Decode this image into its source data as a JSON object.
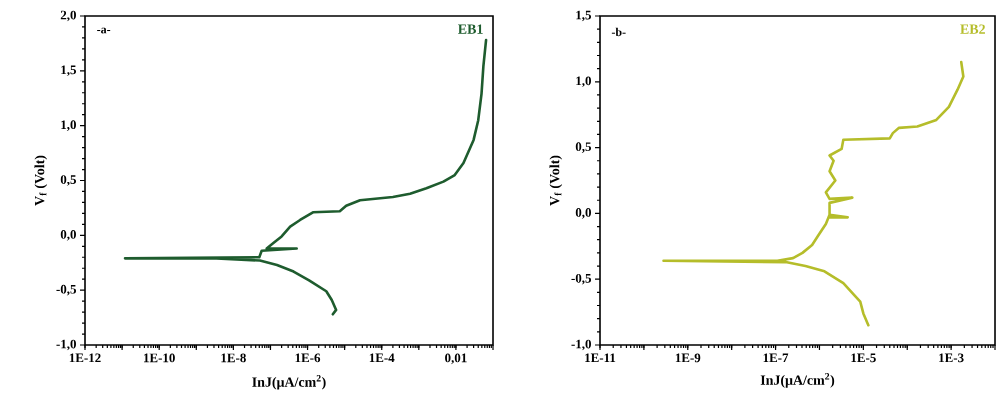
{
  "chart_data": [
    {
      "type": "line",
      "xlabel": "InJ(μA/cm$^{2}$)",
      "ylabel": "V$_{f}$ (Volt)",
      "annotations": [
        "-a-"
      ],
      "log": "x",
      "xlim": [
        1e-12,
        0.1
      ],
      "xticks": [
        {
          "value": 1e-12,
          "label": "1E-12"
        },
        {
          "value": 1e-11,
          "label": null
        },
        {
          "value": 1e-10,
          "label": "1E-10"
        },
        {
          "value": 1e-09,
          "label": null
        },
        {
          "value": 1e-08,
          "label": "1E-8"
        },
        {
          "value": 1e-07,
          "label": null
        },
        {
          "value": 1e-06,
          "label": "1E-6"
        },
        {
          "value": 1e-05,
          "label": null
        },
        {
          "value": 0.0001,
          "label": "1E-4"
        },
        {
          "value": 0.001,
          "label": null
        },
        {
          "value": 0.01,
          "label": "0,01"
        },
        {
          "value": 0.1,
          "label": null
        }
      ],
      "ylim": [
        -1,
        2
      ],
      "yticks": [
        {
          "value": -1,
          "label": "-1,0"
        },
        {
          "value": -0.5,
          "label": "-0,5"
        },
        {
          "value": 0,
          "label": "0,0"
        },
        {
          "value": 0.5,
          "label": "0,5"
        },
        {
          "value": 1,
          "label": "1,0"
        },
        {
          "value": 1.5,
          "label": "1,5"
        },
        {
          "value": 2,
          "label": "2,0"
        }
      ],
      "series": [
        {
          "name": "EB1",
          "color": "#1e5c2e",
          "x": [
            4.8e-06,
            5.9e-06,
            4.5e-06,
            3.2e-06,
            1.1e-06,
            4.2e-07,
            1.5e-07,
            5.2e-08,
            3.5e-09,
            1.2e-11,
            5e-08,
            5.8e-08,
            5.1e-07,
            7.9e-08,
            1.2e-07,
            2e-07,
            3.4e-07,
            6.3e-07,
            1.4e-06,
            7.4e-06,
            1.1e-05,
            2.6e-05,
            0.0002,
            0.00058,
            0.0016,
            0.0046,
            0.0093,
            0.016,
            0.03,
            0.04,
            0.049,
            0.055,
            0.065
          ],
          "values": [
            -0.72,
            -0.68,
            -0.59,
            -0.51,
            -0.41,
            -0.33,
            -0.27,
            -0.23,
            -0.21,
            -0.21,
            -0.2,
            -0.14,
            -0.12,
            -0.12,
            -0.07,
            -0.01,
            0.08,
            0.14,
            0.21,
            0.22,
            0.27,
            0.32,
            0.35,
            0.38,
            0.43,
            0.49,
            0.55,
            0.66,
            0.87,
            1.05,
            1.29,
            1.54,
            1.78
          ]
        }
      ]
    },
    {
      "type": "line",
      "xlabel": "InJ(μA/cm$^{2}$)",
      "ylabel": "V$_{f}$ (Volt)",
      "annotations": [
        "-b-"
      ],
      "log": "x",
      "xlim": [
        1e-11,
        0.01
      ],
      "xticks": [
        {
          "value": 1e-11,
          "label": "1E-11"
        },
        {
          "value": 1e-10,
          "label": null
        },
        {
          "value": 1e-09,
          "label": "1E-9"
        },
        {
          "value": 1e-08,
          "label": null
        },
        {
          "value": 1e-07,
          "label": "1E-7"
        },
        {
          "value": 1e-06,
          "label": null
        },
        {
          "value": 1e-05,
          "label": "1E-5"
        },
        {
          "value": 0.0001,
          "label": null
        },
        {
          "value": 0.001,
          "label": "1E-3"
        },
        {
          "value": 0.01,
          "label": null
        }
      ],
      "ylim": [
        -1,
        1.5
      ],
      "yticks": [
        {
          "value": -1,
          "label": "-1,0"
        },
        {
          "value": -0.5,
          "label": "-0,5"
        },
        {
          "value": 0,
          "label": "0,0"
        },
        {
          "value": 0.5,
          "label": "0,5"
        },
        {
          "value": 1,
          "label": "1,0"
        },
        {
          "value": 1.5,
          "label": "1,5"
        }
      ],
      "series": [
        {
          "name": "EB2",
          "color": "#b5bd2a",
          "x": [
            1.3e-05,
            1e-05,
            8.5e-06,
            6.6e-06,
            3.5e-06,
            1.3e-06,
            4.8e-07,
            1.7e-07,
            2.8e-10,
            1.1e-07,
            2.5e-07,
            4.1e-07,
            6.8e-07,
            9.3e-07,
            1.4e-06,
            1.7e-06,
            4.4e-06,
            1.7e-06,
            1.7e-06,
            5.6e-06,
            1.7e-06,
            1.4e-06,
            2.3e-06,
            1.7e-06,
            2.1e-06,
            1.7e-06,
            3.2e-06,
            3.5e-06,
            4e-05,
            4.7e-05,
            6.5e-05,
            0.00017,
            0.00046,
            0.00089,
            0.0014,
            0.0019,
            0.0017
          ],
          "values": [
            -0.85,
            -0.76,
            -0.67,
            -0.63,
            -0.53,
            -0.44,
            -0.4,
            -0.37,
            -0.36,
            -0.36,
            -0.34,
            -0.3,
            -0.24,
            -0.17,
            -0.08,
            -0.01,
            -0.03,
            -0.03,
            0.08,
            0.12,
            0.11,
            0.16,
            0.25,
            0.32,
            0.4,
            0.44,
            0.49,
            0.56,
            0.57,
            0.61,
            0.65,
            0.66,
            0.71,
            0.81,
            0.94,
            1.04,
            1.15
          ]
        }
      ]
    }
  ]
}
